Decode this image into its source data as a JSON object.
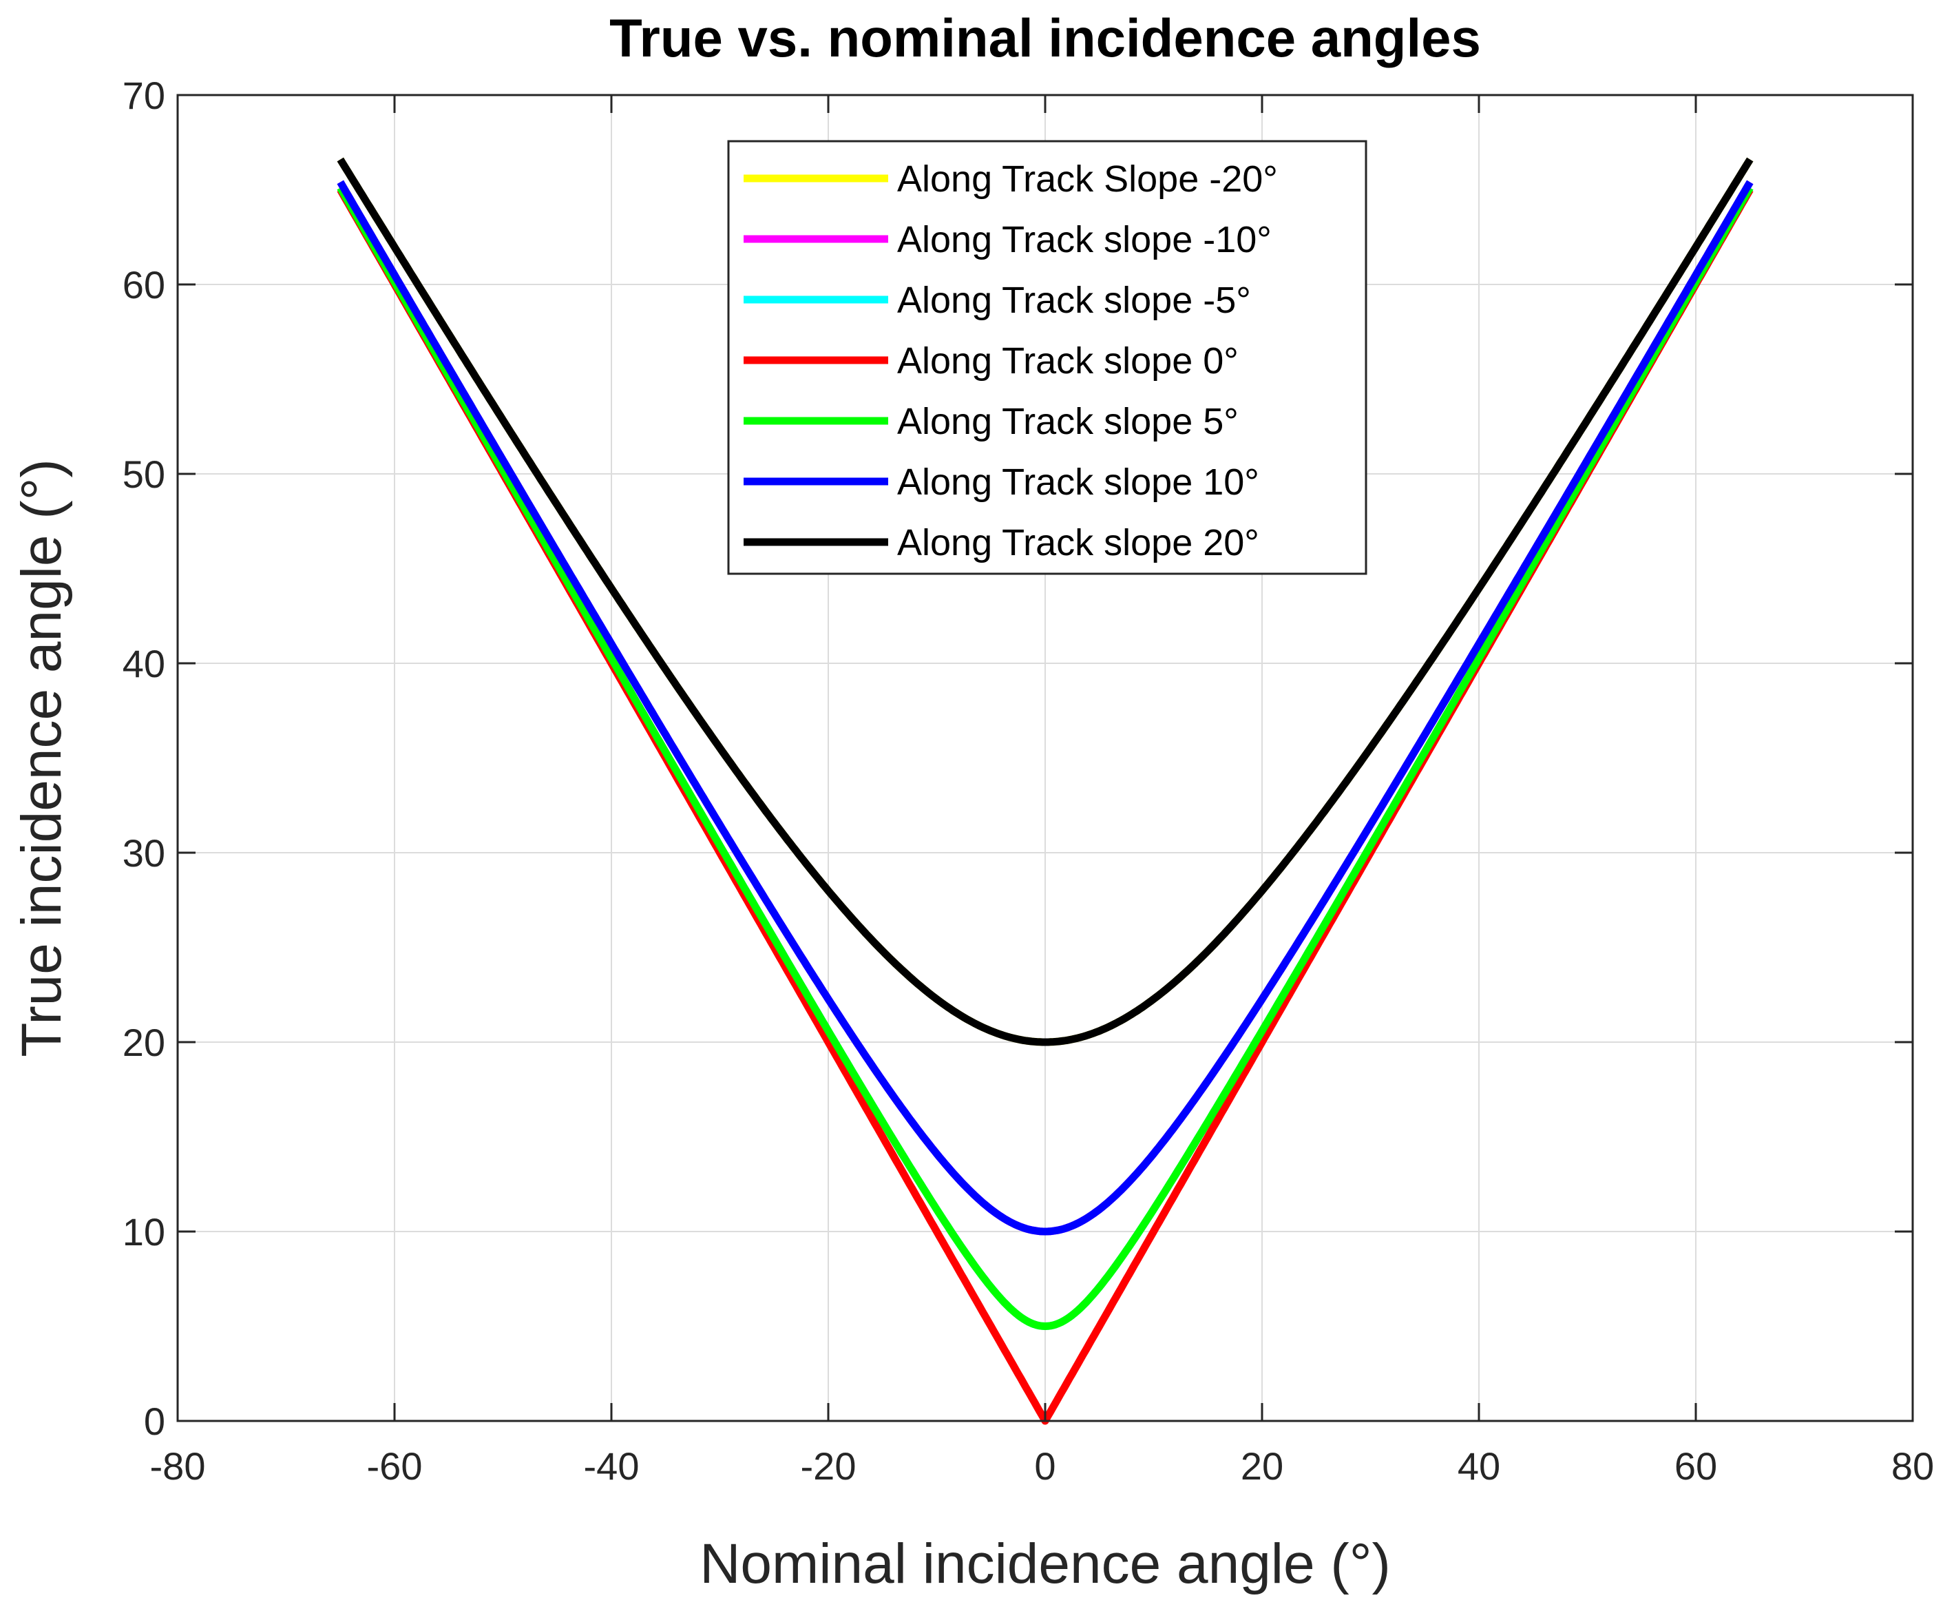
{
  "chart_data": {
    "type": "line",
    "title": "True vs. nominal incidence angles",
    "xlabel": "Nominal incidence angle (°)",
    "ylabel": "True incidence angle (°)",
    "xlim": [
      -80,
      80
    ],
    "ylim": [
      0,
      70
    ],
    "xticks": [
      -80,
      -60,
      -40,
      -20,
      0,
      20,
      40,
      60,
      80
    ],
    "yticks": [
      0,
      10,
      20,
      30,
      40,
      50,
      60,
      70
    ],
    "grid": true,
    "legend_position": "top-center",
    "x_range": [
      -65,
      65
    ],
    "series": [
      {
        "name": "Along Track Slope -20°",
        "slope": -20,
        "color": "#ffff00"
      },
      {
        "name": "Along Track slope -10°",
        "slope": -10,
        "color": "#ff00ff"
      },
      {
        "name": "Along Track slope -5°",
        "slope": -5,
        "color": "#00ffff"
      },
      {
        "name": "Along Track slope 0°",
        "slope": 0,
        "color": "#ff0000"
      },
      {
        "name": "Along Track slope 5°",
        "slope": 5,
        "color": "#00ff00"
      },
      {
        "name": "Along Track slope 10°",
        "slope": 10,
        "color": "#0000ff"
      },
      {
        "name": "Along Track slope 20°",
        "slope": 20,
        "color": "#000000"
      }
    ]
  }
}
